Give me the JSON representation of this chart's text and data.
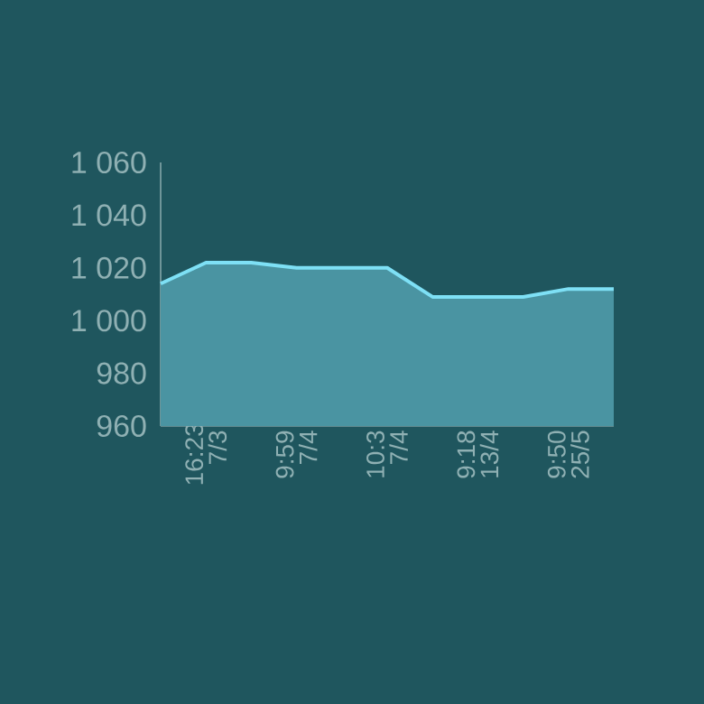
{
  "chart_data": {
    "type": "area",
    "categories": [
      null,
      "16:23 7/3",
      null,
      "9:59 7/4",
      null,
      "10:3 7/4",
      null,
      "9:18 13/4",
      null,
      "9:50 25/5",
      null
    ],
    "values": [
      1014,
      1022,
      1022,
      1020,
      1020,
      1020,
      1009,
      1009,
      1009,
      1012,
      1012
    ],
    "color": "#7ee0f5",
    "ylim": [
      960,
      1060
    ],
    "yticks": [
      {
        "value": 960,
        "label": "960"
      },
      {
        "value": 980,
        "label": "980"
      },
      {
        "value": 1000,
        "label": "1 000"
      },
      {
        "value": 1020,
        "label": "1 020"
      },
      {
        "value": 1040,
        "label": "1 040"
      },
      {
        "value": 1060,
        "label": "1 060"
      }
    ],
    "grid": false
  }
}
